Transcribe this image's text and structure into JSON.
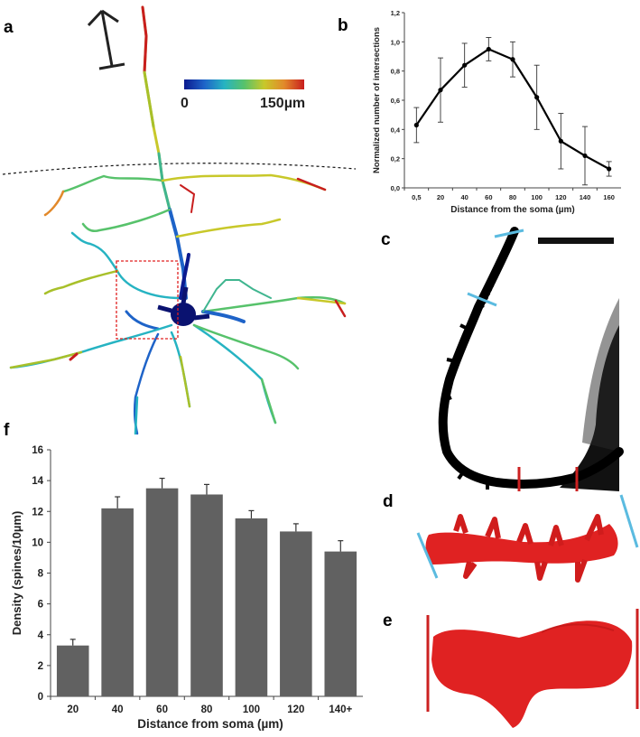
{
  "panels": {
    "a": "a",
    "b": "b",
    "c": "c",
    "d": "d",
    "e": "e",
    "f": "f"
  },
  "colorbar": {
    "min_label": "0",
    "max_label": "150µm",
    "colors": [
      "#0b1a8f",
      "#1e63c8",
      "#26b3c2",
      "#57c26b",
      "#c8c82a",
      "#e2892b",
      "#c81e1e"
    ]
  },
  "neuron_colors": {
    "soma": "#0a1270",
    "red": "#cc2121",
    "bluespine": "#5bbbe0"
  },
  "chart_data": [
    {
      "panel": "b",
      "type": "line",
      "title": "",
      "xlabel": "Distance from the soma (µm)",
      "ylabel": "Normalized number of intersections",
      "categories": [
        "0,5",
        "20",
        "40",
        "60",
        "80",
        "100",
        "120",
        "140",
        "160"
      ],
      "values": [
        0.43,
        0.67,
        0.84,
        0.95,
        0.88,
        0.62,
        0.32,
        0.22,
        0.13
      ],
      "errors": [
        0.12,
        0.22,
        0.15,
        0.08,
        0.12,
        0.22,
        0.19,
        0.2,
        0.05
      ],
      "yticks": [
        "0,0",
        "0,2",
        "0,4",
        "0,6",
        "0,8",
        "1,0",
        "1,2"
      ],
      "ylim": [
        0,
        1.2
      ],
      "color": "#000000"
    },
    {
      "panel": "f",
      "type": "bar",
      "title": "",
      "xlabel": "Distance from soma (µm)",
      "ylabel": "Density (spines/10µm)",
      "categories": [
        "20",
        "40",
        "60",
        "80",
        "100",
        "120",
        "140+"
      ],
      "values": [
        3.3,
        12.2,
        13.5,
        13.1,
        11.55,
        10.7,
        9.4
      ],
      "errors": [
        0.4,
        0.75,
        0.65,
        0.65,
        0.5,
        0.5,
        0.7
      ],
      "yticks": [
        "0",
        "2",
        "4",
        "6",
        "8",
        "10",
        "12",
        "14",
        "16"
      ],
      "ylim": [
        0,
        16
      ],
      "bar_color": "#616161"
    }
  ]
}
